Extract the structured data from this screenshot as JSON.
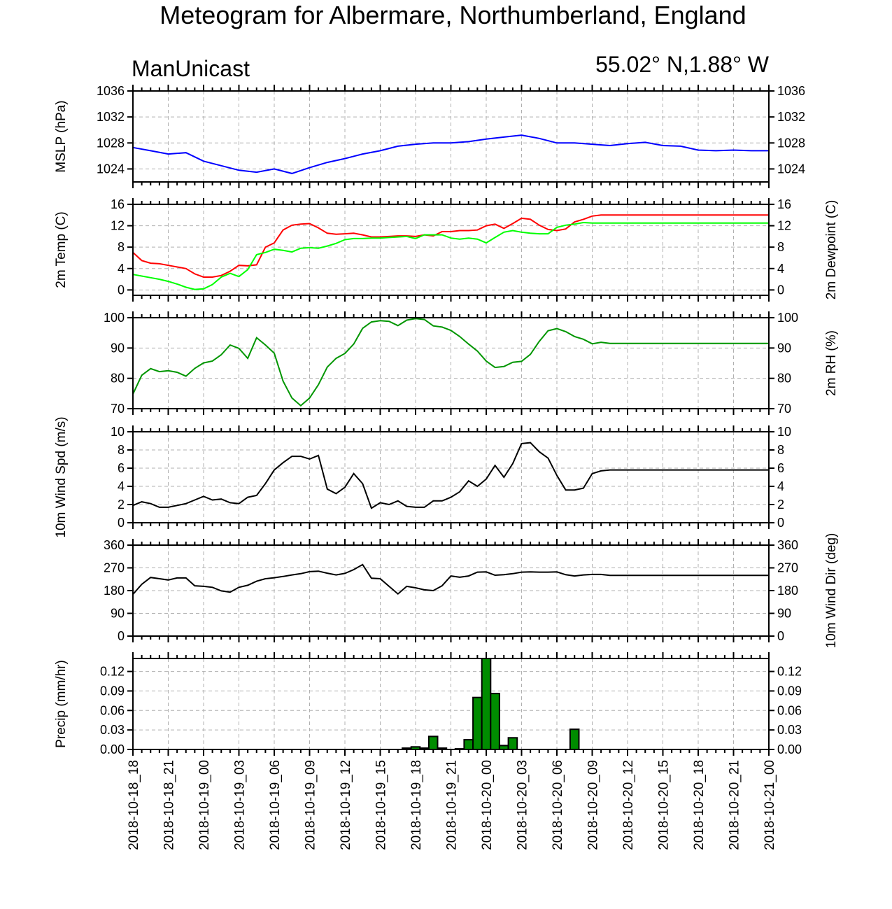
{
  "title": "Meteogram for Albermare, Northumberland, England",
  "model": "ManUnicast",
  "coords": "55.02° N,1.88° W",
  "colors": {
    "mslp": "#0000ff",
    "temp": "#ff0000",
    "dew": "#00ff00",
    "rh": "#009600",
    "wind": "#000000",
    "precip": "#008c00"
  },
  "chart_data": [
    {
      "type": "line",
      "id": "mslp",
      "ylabel": "MSLP (hPa)",
      "ylim": [
        1022,
        1036
      ],
      "ticks": [
        1024,
        1028,
        1032,
        1036
      ],
      "grid": true,
      "x_hours": [
        0,
        2,
        4,
        6,
        8,
        10,
        12,
        14,
        16,
        18,
        20,
        22,
        24,
        26,
        28,
        30,
        32,
        34,
        36,
        38,
        40,
        42,
        44,
        46,
        48,
        50,
        52,
        54,
        56,
        58,
        60,
        62,
        64,
        66,
        68,
        70,
        72
      ],
      "series": [
        {
          "values": [
            1027.3,
            1026.8,
            1026.3,
            1026.5,
            1025.2,
            1024.5,
            1023.8,
            1023.5,
            1024.0,
            1023.3,
            1024.2,
            1025.0,
            1025.6,
            1026.3,
            1026.8,
            1027.5,
            1027.8,
            1028.0,
            1028.0,
            1028.2,
            1028.6,
            1028.9,
            1029.2,
            1028.7,
            1028.0,
            1028.0,
            1027.8,
            1027.6,
            1027.9,
            1028.1,
            1027.6,
            1027.5,
            1026.9,
            1026.8,
            1026.9,
            1026.8,
            1026.8
          ]
        }
      ]
    },
    {
      "type": "line",
      "id": "temp",
      "ylabel": "2m Temp (C)",
      "ylabel_right": "2m Dewpoint (C)",
      "ylim": [
        -1,
        16
      ],
      "ticks": [
        0,
        4,
        8,
        12,
        16
      ],
      "grid": true,
      "x_hours": [
        0,
        1,
        2,
        3,
        4,
        5,
        6,
        7,
        8,
        9,
        10,
        11,
        12,
        13,
        14,
        15,
        16,
        17,
        18,
        19,
        20,
        21,
        22,
        23,
        24,
        25,
        26,
        27,
        28,
        29,
        30,
        31,
        32,
        33,
        34,
        35,
        36,
        37,
        38,
        39,
        40,
        41,
        42,
        43,
        44,
        45,
        46,
        47,
        48,
        49,
        50,
        51,
        52,
        53,
        54,
        55,
        56,
        57,
        58,
        59,
        60,
        61,
        62,
        63,
        64,
        65,
        66,
        67,
        68,
        69,
        70,
        71,
        72
      ],
      "series": [
        {
          "values": [
            7.0,
            5.5,
            5.0,
            4.9,
            4.6,
            4.3,
            4.0,
            3.0,
            2.4,
            2.4,
            2.7,
            3.5,
            4.6,
            4.5,
            4.7,
            8.0,
            8.8,
            11.2,
            12.1,
            12.3,
            12.4,
            11.6,
            10.6,
            10.4,
            10.5,
            10.6,
            10.3,
            9.9,
            9.9,
            10.0,
            10.1,
            10.1,
            10.0,
            10.3,
            10.1,
            10.9,
            10.9,
            11.1,
            11.1,
            11.2,
            12.0,
            12.3,
            11.5,
            12.4,
            13.4,
            13.2,
            12.1,
            11.3,
            11.1,
            11.4,
            12.7,
            13.2,
            13.8,
            14.0,
            14.0,
            14.0,
            14.0,
            14.0,
            14.0,
            14.0,
            14.0,
            14.0,
            14.0,
            14.0,
            14.0,
            14.0,
            14.0,
            14.0,
            14.0,
            14.0,
            14.0,
            14.0,
            14.0
          ]
        },
        {
          "values": [
            2.9,
            2.6,
            2.3,
            2.0,
            1.6,
            1.1,
            0.5,
            0.1,
            0.2,
            1.0,
            2.4,
            3.1,
            2.5,
            3.8,
            6.6,
            7.0,
            7.6,
            7.4,
            7.1,
            7.8,
            7.9,
            7.8,
            8.2,
            8.7,
            9.4,
            9.6,
            9.6,
            9.7,
            9.7,
            9.8,
            9.9,
            10.0,
            9.6,
            10.3,
            10.3,
            10.3,
            9.7,
            9.5,
            9.7,
            9.5,
            8.8,
            9.8,
            10.8,
            11.1,
            10.8,
            10.6,
            10.5,
            10.5,
            11.7,
            12.1,
            12.3,
            12.6,
            12.5,
            12.5,
            12.5,
            12.5,
            12.5,
            12.5,
            12.5,
            12.5,
            12.5,
            12.5,
            12.5,
            12.5,
            12.5,
            12.5,
            12.5,
            12.5,
            12.5,
            12.5,
            12.5,
            12.5,
            12.5
          ]
        }
      ]
    },
    {
      "type": "line",
      "id": "rh",
      "ylabel": "2m RH (%)",
      "ylim": [
        70,
        100
      ],
      "ticks": [
        70,
        80,
        90,
        100
      ],
      "grid": true,
      "x_hours": [
        0,
        1,
        2,
        3,
        4,
        5,
        6,
        7,
        8,
        9,
        10,
        11,
        12,
        13,
        14,
        15,
        16,
        17,
        18,
        19,
        20,
        21,
        22,
        23,
        24,
        25,
        26,
        27,
        28,
        29,
        30,
        31,
        32,
        33,
        34,
        35,
        36,
        37,
        38,
        39,
        40,
        41,
        42,
        43,
        44,
        45,
        46,
        47,
        48,
        49,
        50,
        51,
        52,
        53,
        54,
        55,
        56,
        57,
        58,
        59,
        60,
        61,
        62,
        63,
        64,
        65,
        66,
        67,
        68,
        69,
        70,
        71,
        72
      ],
      "series": [
        {
          "values": [
            74.8,
            81.0,
            83.2,
            82.2,
            82.5,
            82.0,
            80.7,
            83.3,
            85.1,
            85.7,
            87.8,
            91.0,
            89.9,
            86.6,
            93.4,
            91.0,
            88.3,
            79.1,
            73.5,
            71.0,
            73.5,
            77.9,
            83.7,
            86.6,
            88.2,
            91.3,
            96.5,
            98.6,
            99.0,
            98.8,
            97.4,
            99.2,
            99.7,
            99.4,
            97.3,
            96.9,
            95.8,
            93.8,
            91.3,
            89.0,
            85.7,
            83.6,
            83.9,
            85.3,
            85.6,
            87.9,
            92.2,
            95.7,
            96.4,
            95.4,
            93.8,
            92.9,
            91.4,
            91.9,
            91.5,
            91.5,
            91.5,
            91.5,
            91.5,
            91.5,
            91.5,
            91.5,
            91.5,
            91.5,
            91.5,
            91.5,
            91.5,
            91.5,
            91.5,
            91.5,
            91.5,
            91.5,
            91.5
          ]
        }
      ]
    },
    {
      "type": "line",
      "id": "wspd",
      "ylabel": "10m Wind Spd (m/s)",
      "ylim": [
        0,
        10
      ],
      "ticks": [
        0,
        2,
        4,
        6,
        8,
        10
      ],
      "grid": true,
      "x_hours": [
        0,
        1,
        2,
        3,
        4,
        5,
        6,
        7,
        8,
        9,
        10,
        11,
        12,
        13,
        14,
        15,
        16,
        17,
        18,
        19,
        20,
        21,
        22,
        23,
        24,
        25,
        26,
        27,
        28,
        29,
        30,
        31,
        32,
        33,
        34,
        35,
        36,
        37,
        38,
        39,
        40,
        41,
        42,
        43,
        44,
        45,
        46,
        47,
        48,
        49,
        50,
        51,
        52,
        53,
        54,
        55,
        56,
        57,
        58,
        59,
        60,
        61,
        62,
        63,
        64,
        65,
        66,
        67,
        68,
        69,
        70,
        71,
        72
      ],
      "series": [
        {
          "values": [
            1.9,
            2.3,
            2.1,
            1.7,
            1.7,
            1.9,
            2.1,
            2.5,
            2.9,
            2.5,
            2.6,
            2.2,
            2.1,
            2.8,
            3.0,
            4.3,
            5.8,
            6.6,
            7.3,
            7.3,
            7.0,
            7.4,
            3.7,
            3.2,
            3.9,
            5.4,
            4.3,
            1.6,
            2.2,
            2.0,
            2.4,
            1.8,
            1.7,
            1.7,
            2.4,
            2.4,
            2.8,
            3.4,
            4.6,
            4.0,
            4.8,
            6.3,
            5.0,
            6.5,
            8.7,
            8.8,
            7.8,
            7.1,
            5.2,
            3.6,
            3.6,
            3.8,
            5.4,
            5.7,
            5.8,
            5.8,
            5.8,
            5.8,
            5.8,
            5.8,
            5.8,
            5.8,
            5.8,
            5.8,
            5.8,
            5.8,
            5.8,
            5.8,
            5.8,
            5.8,
            5.8,
            5.8,
            5.8
          ]
        }
      ]
    },
    {
      "type": "line",
      "id": "wdir",
      "ylabel": "10m Wind Dir (deg)",
      "ylim": [
        0,
        360
      ],
      "ticks": [
        0,
        90,
        180,
        270,
        360
      ],
      "grid": true,
      "x_hours": [
        0,
        1,
        2,
        3,
        4,
        5,
        6,
        7,
        8,
        9,
        10,
        11,
        12,
        13,
        14,
        15,
        16,
        17,
        18,
        19,
        20,
        21,
        22,
        23,
        24,
        25,
        26,
        27,
        28,
        29,
        30,
        31,
        32,
        33,
        34,
        35,
        36,
        37,
        38,
        39,
        40,
        41,
        42,
        43,
        44,
        45,
        46,
        47,
        48,
        49,
        50,
        51,
        52,
        53,
        54,
        55,
        56,
        57,
        58,
        59,
        60,
        61,
        62,
        63,
        64,
        65,
        66,
        67,
        68,
        69,
        70,
        71,
        72
      ],
      "series": [
        {
          "values": [
            165,
            205,
            232,
            227,
            222,
            230,
            230,
            199,
            197,
            193,
            179,
            174,
            193,
            201,
            217,
            227,
            231,
            236,
            242,
            247,
            255,
            257,
            249,
            242,
            248,
            263,
            283,
            229,
            227,
            197,
            167,
            197,
            191,
            183,
            180,
            199,
            238,
            233,
            238,
            253,
            254,
            241,
            243,
            247,
            253,
            254,
            253,
            253,
            254,
            243,
            238,
            242,
            244,
            244,
            240,
            240,
            240,
            240,
            240,
            240,
            240,
            240,
            240,
            240,
            240,
            240,
            240,
            240,
            240,
            240,
            240,
            240,
            240
          ]
        }
      ]
    },
    {
      "type": "bar",
      "id": "precip",
      "ylabel": "Precip (mm/hr)",
      "ylim": [
        0,
        0.14
      ],
      "ticks": [
        0.0,
        0.03,
        0.06,
        0.09,
        0.12
      ],
      "grid": true,
      "x_hours": [
        28,
        29,
        30,
        31,
        32,
        33,
        34,
        35,
        36,
        37,
        38,
        39,
        40,
        41,
        42,
        43,
        44,
        45,
        46,
        47,
        48,
        49,
        50,
        51,
        52,
        53,
        54,
        55
      ],
      "values": [
        0,
        0,
        0,
        0.002,
        0.004,
        0.002,
        0.02,
        0.002,
        0,
        0.001,
        0.015,
        0.08,
        0.141,
        0.086,
        0.006,
        0.018,
        0,
        0,
        0,
        0,
        0,
        0,
        0.031,
        0,
        0,
        0,
        0,
        0
      ]
    }
  ],
  "x_tick_labels": [
    "2018-10-18_18",
    "2018-10-18_21",
    "2018-10-19_00",
    "2018-10-19_03",
    "2018-10-19_06",
    "2018-10-19_09",
    "2018-10-19_12",
    "2018-10-19_15",
    "2018-10-19_18",
    "2018-10-19_21",
    "2018-10-20_00",
    "2018-10-20_03",
    "2018-10-20_06",
    "2018-10-20_09",
    "2018-10-20_12",
    "2018-10-20_15",
    "2018-10-20_18",
    "2018-10-20_21",
    "2018-10-21_00"
  ]
}
